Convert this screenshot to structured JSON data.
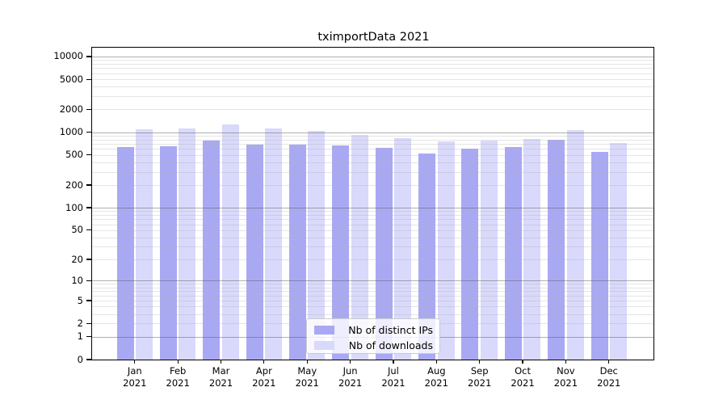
{
  "title": "tximportData 2021",
  "chart_data": {
    "type": "bar",
    "title": "tximportData 2021",
    "y_scale": "symlog",
    "categories": [
      "Jan",
      "Feb",
      "Mar",
      "Apr",
      "May",
      "Jun",
      "Jul",
      "Aug",
      "Sep",
      "Oct",
      "Nov",
      "Dec"
    ],
    "x_tick_year": "2021",
    "series": [
      {
        "name": "Nb of distinct IPs",
        "color": "#a9a9f3",
        "values": [
          640,
          655,
          780,
          690,
          685,
          670,
          620,
          525,
          605,
          630,
          790,
          555
        ]
      },
      {
        "name": "Nb of downloads",
        "color": "#d9d9fb",
        "values": [
          1100,
          1125,
          1270,
          1120,
          1035,
          915,
          840,
          755,
          775,
          810,
          1060,
          725
        ]
      }
    ],
    "yticks": [
      10000,
      5000,
      2000,
      1000,
      500,
      200,
      100,
      50,
      20,
      10,
      5,
      2,
      1,
      0
    ],
    "ylim": [
      0,
      13000
    ],
    "grid": {
      "major_at": [
        1,
        10,
        100,
        1000,
        10000
      ],
      "major_color": "#b3b3b3",
      "minor_color": "#e4e4e4"
    },
    "legend": {
      "position": "lower center",
      "entries": [
        "Nb of distinct IPs",
        "Nb of downloads"
      ]
    }
  }
}
